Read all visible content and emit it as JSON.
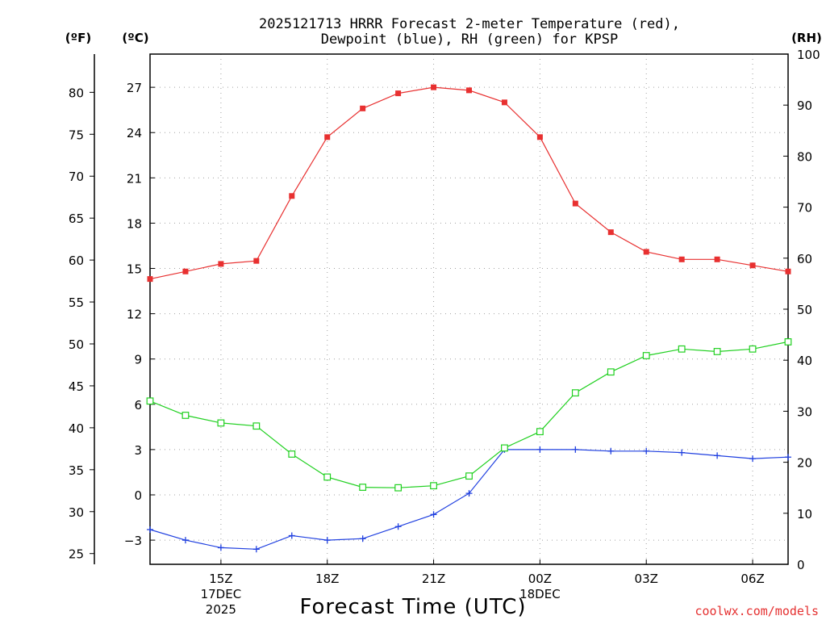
{
  "chart_data": {
    "type": "line",
    "title_line1": "2025121713 HRRR Forecast 2-meter Temperature (red),",
    "title_line2": "Dewpoint (blue), RH (green) for KPSP",
    "xlabel": "Forecast Time (UTC)",
    "credit": "coolwx.com/models",
    "units": {
      "fahrenheit": "(ºF)",
      "celsius": "(ºC)",
      "rh": "(RH)"
    },
    "x_hours": [
      13,
      14,
      15,
      16,
      17,
      18,
      19,
      20,
      21,
      22,
      23,
      24,
      25,
      26,
      27,
      28,
      29,
      30,
      31
    ],
    "xlim": [
      13,
      31
    ],
    "celsius_range": [
      -4.6,
      29.2
    ],
    "rh_range": [
      0,
      100
    ],
    "x_ticks": [
      {
        "hour": 15,
        "lines": [
          "15Z",
          "17DEC",
          "2025"
        ]
      },
      {
        "hour": 18,
        "lines": [
          "18Z"
        ]
      },
      {
        "hour": 21,
        "lines": [
          "21Z"
        ]
      },
      {
        "hour": 24,
        "lines": [
          "00Z",
          "18DEC"
        ]
      },
      {
        "hour": 27,
        "lines": [
          "03Z"
        ]
      },
      {
        "hour": 30,
        "lines": [
          "06Z"
        ]
      }
    ],
    "celsius_ticks": [
      -3,
      0,
      3,
      6,
      9,
      12,
      15,
      18,
      21,
      24,
      27
    ],
    "celsius_tick_labels": [
      "−3",
      "0",
      "3",
      "6",
      "9",
      "12",
      "15",
      "18",
      "21",
      "24",
      "27"
    ],
    "fahrenheit_ticks": [
      25,
      30,
      35,
      40,
      45,
      50,
      55,
      60,
      65,
      70,
      75,
      80
    ],
    "fahrenheit_tick_labels": [
      "25",
      "30",
      "35",
      "40",
      "45",
      "50",
      "55",
      "60",
      "65",
      "70",
      "75",
      "80"
    ],
    "rh_ticks": [
      0,
      10,
      20,
      30,
      40,
      50,
      60,
      70,
      80,
      90,
      100
    ],
    "rh_tick_labels": [
      "0",
      "10",
      "20",
      "30",
      "40",
      "50",
      "60",
      "70",
      "80",
      "90",
      "100"
    ],
    "series": [
      {
        "name": "Temperature",
        "color": "#e83030",
        "marker": "filled-square",
        "axis": "celsius",
        "values": [
          14.3,
          14.8,
          15.3,
          15.5,
          19.8,
          23.7,
          25.6,
          26.6,
          27.0,
          26.8,
          26.0,
          23.7,
          19.3,
          17.4,
          16.1,
          15.6,
          15.6,
          15.2,
          14.8
        ]
      },
      {
        "name": "Dewpoint",
        "color": "#2040e0",
        "marker": "plus",
        "axis": "celsius",
        "values": [
          -2.3,
          -3.0,
          -3.5,
          -3.6,
          -2.7,
          -3.0,
          -2.9,
          -2.1,
          -1.3,
          0.1,
          3.0,
          3.0,
          3.0,
          2.9,
          2.9,
          2.8,
          2.6,
          2.4,
          2.5
        ]
      },
      {
        "name": "RH",
        "color": "#20d020",
        "marker": "open-square",
        "axis": "rh",
        "values": [
          32.0,
          29.2,
          27.7,
          27.1,
          21.6,
          17.1,
          15.1,
          15.0,
          15.4,
          17.3,
          22.8,
          26.0,
          33.6,
          37.7,
          40.9,
          42.2,
          41.7,
          42.2,
          43.6
        ]
      }
    ]
  }
}
